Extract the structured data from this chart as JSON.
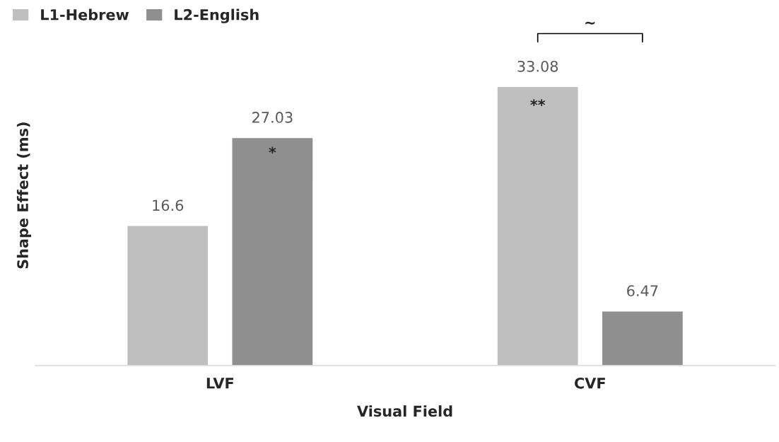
{
  "chart_data": {
    "type": "bar",
    "xlabel": "Visual Field",
    "ylabel": "Shape Effect (ms)",
    "categories": [
      "LVF",
      "CVF"
    ],
    "series": [
      {
        "name": "L1-Hebrew",
        "color": "#bfbfbf",
        "values": [
          16.6,
          33.08
        ]
      },
      {
        "name": "L2-English",
        "color": "#8f8f8f",
        "values": [
          27.03,
          6.47
        ]
      }
    ],
    "data_labels": true,
    "legend": "top left",
    "grid": false,
    "annotations": [
      "*",
      "**",
      "~"
    ]
  }
}
